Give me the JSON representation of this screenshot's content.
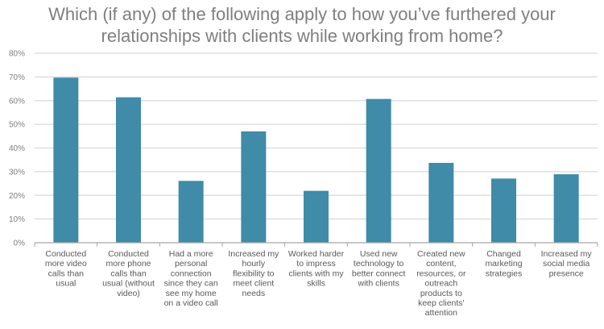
{
  "chart_data": {
    "type": "bar",
    "title": "Which (if any) of the following apply to how you’ve furthered your relationships with clients while working from home?",
    "categories": [
      "Conducted more video calls than usual",
      "Conducted more phone calls than usual (without video)",
      "Had a more personal connection since they can see my home on a video call",
      "Increased my hourly flexibility to meet client needs",
      "Worked harder to impress clients with my skills",
      "Used new technology to better connect with clients",
      "Created new content, resources, or outreach products to keep clients' attention",
      "Changed marketing strategies",
      "Increased my social media presence"
    ],
    "category_lines": [
      [
        "Conducted",
        "more video",
        "calls than",
        "usual"
      ],
      [
        "Conducted",
        "more phone",
        "calls than",
        "usual (without",
        "video)"
      ],
      [
        "Had a more",
        "personal",
        "connection",
        "since they can",
        "see my home",
        "on a video call"
      ],
      [
        "Increased my",
        "hourly",
        "flexibility to",
        "meet client",
        "needs"
      ],
      [
        "Worked harder",
        "to impress",
        "clients with my",
        "skills"
      ],
      [
        "Used new",
        "technology to",
        "better connect",
        "with clients"
      ],
      [
        "Created new",
        "content,",
        "resources, or",
        "outreach",
        "products to",
        "keep clients'",
        "attention"
      ],
      [
        "Changed",
        "marketing",
        "strategies"
      ],
      [
        "Increased my",
        "social media",
        "presence"
      ]
    ],
    "values": [
      69.7,
      61.4,
      26.1,
      47.0,
      21.9,
      60.7,
      33.7,
      27.1,
      28.9
    ],
    "ylim": [
      0,
      80
    ],
    "yticks": [
      "0%",
      "10%",
      "20%",
      "30%",
      "40%",
      "50%",
      "60%",
      "70%",
      "80%"
    ],
    "grid": true,
    "colors": {
      "bar": "#3f8ba8",
      "grid": "#d9d9d9",
      "axis": "#a6a6a6"
    }
  }
}
